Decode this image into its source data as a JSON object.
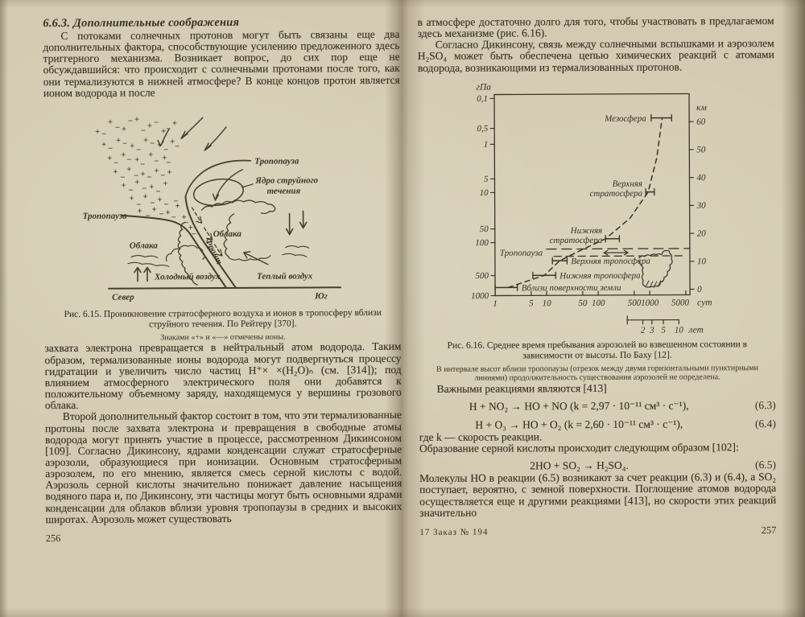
{
  "left_page": {
    "heading": "6.6.3. Дополнительные соображения",
    "para1": "С потоками солнечных  протонов могут быть связаны еще два дополнительных фактора, способствующие усилению предложенного здесь триггерного механизма. Возникает вопрос, до сих пор еще не обсуждавшийся: что происходит с солнечными протонами после того, как они термализуются в нижней атмосфере? В конце концов протон является ионом водорода и после",
    "figure": {
      "labels": {
        "tropopause_top": "Тропопауза",
        "tropopause_left": "Тропопауза",
        "jet_core_line1": "Ядро струйного",
        "jet_core_line2": "течения",
        "clouds_right": "Облака",
        "clouds_left": "Облака",
        "front": "Фронт",
        "cold_air": "Холодный воздух",
        "warm_air": "Теплый воздух",
        "north": "Север",
        "south": "Юг",
        "plus": "+",
        "minus": "−"
      }
    },
    "fig_caption": "Рис. 6.15. Проникновение стратосферного воздуха и ионов в тропосферу вблизи струйного течения. По Рейтеру [370].",
    "fig_note": "Знаками «+» и «—» отмечены ионы.",
    "para2": "захвата электрона превращается в нейтральный атом водорода. Таким образом, термализованные ионы  водорода могут подвергнуться процессу гидратации и увеличить число частиц H⁺× ×(H₂O)ₙ (см. [314]); под влиянием атмосферного электрического поля они добавятся к положительному объемному заряду, находящемуся у вершины грозового облака.",
    "para3": "Второй дополнительный фактор состоит в том, что эти термализованные протоны после захвата электрона и превращения в свободные атомы водорода могут принять участие в процессе, рассмотренном Дикинсоном [109]. Согласно Дикинсону, ядрами конденсации служат стратосферные  аэрозоли, образующиеся при ионизации. Основным  стратосферным  аэрозолем, по его мнению, является смесь серной кислоты с водой. Аэрозоль серной кислоты значительно понижает давление насыщения водяного пара и, по Дикинсону, эти частицы могут быть основными ядрами конденсации для облаков  вблизи уровня тропопаузы в средних и высоких широтах.  Аэрозоль может существовать",
    "page_number": "256"
  },
  "right_page": {
    "para1": "в атмосфере достаточно  долго  для того, чтобы участвовать в предлагаемом здесь механизме (рис. 6.16).",
    "para2": "Согласно Дикинсону, связь между солнечными вспышками и аэрозолем H₂SO₄ может быть обеспечена цепью химических реакций с атомами водорода, возникающими из термализованных протонов.",
    "fig_caption": "Рис. 6.16. Среднее время пребывания аэрозолей во взвешенном состоянии в зависимости от высоты. По Баху [12].",
    "fig_note": "В интервале высот вблизи тропопаузы (отрезок между двумя горизонтальными пунктирными линиями) продолжительность существования аэрозолей не определена.",
    "reactions_intro": "Важными реакциями являются [413]",
    "equations": [
      {
        "formula": "H + NO₂ → HO + NO (k = 2,97 · 10⁻¹¹ см³ · с⁻¹),",
        "number": "(6.3)"
      },
      {
        "formula": "H + O₃ → HO + O₂ (k = 2,60 · 10⁻¹¹ см³ · с⁻¹),",
        "number": "(6.4)"
      },
      {
        "formula": "2HO + SO₂ → H₂SO₄.",
        "number": "(6.5)"
      }
    ],
    "where_k": "где k — скорость реакции.",
    "sulfuric": "Образование серной  кислоты происходит следующим образом [102]:",
    "para3": "Молекулы HO в реакции (6.5)  возникают за счет реакции (6.3) и (6.4), а SO₂ поступает,  вероятно,  с земной  поверхности. Поглощение атомов водорода  осуществляется еще и другими реакциями  [413],  но  скорости  этих  реакций значительно",
    "footer_left": "17   Заказ № 194",
    "page_number": "257"
  },
  "chart_data": {
    "type": "scatter",
    "title": "Среднее время пребывания аэрозолей во взвешенном состоянии в зависимости от высоты. По Баху [12].",
    "x_axis": {
      "unit": "сут",
      "scale": "log",
      "ticks": [
        1,
        5,
        10,
        50,
        100,
        500,
        1000,
        5000
      ],
      "range": [
        1,
        6000
      ]
    },
    "x_axis_secondary": {
      "unit": "лет",
      "ticks": [
        {
          "label": "",
          "years": 1
        },
        {
          "label": "2",
          "years": 2
        },
        {
          "label": "3",
          "years": 3
        },
        {
          "label": "5",
          "years": 5
        },
        {
          "label": "10",
          "years": 10
        }
      ]
    },
    "y_axis_left": {
      "unit": "гПа",
      "ticks": [
        {
          "label": "0,1",
          "alt_km": 68.6
        },
        {
          "label": "0,5",
          "alt_km": 57.9
        },
        {
          "label": "1",
          "alt_km": 52.2
        },
        {
          "label": "5",
          "alt_km": 39.8
        },
        {
          "label": "10",
          "alt_km": 34.9
        },
        {
          "label": "50",
          "alt_km": 21.9
        },
        {
          "label": "100",
          "alt_km": 17.0
        },
        {
          "label": "500",
          "alt_km": 5.2
        },
        {
          "label": "1000",
          "alt_km": -2
        }
      ]
    },
    "y_axis_right": {
      "unit": "км",
      "ticks": [
        60,
        50,
        40,
        30,
        20,
        10,
        0
      ],
      "alt_range": [
        -2,
        70
      ]
    },
    "points": [
      {
        "label_lines": [
          "Мезосфера"
        ],
        "alt_km": 61.4,
        "days_min": 1100,
        "days_max": 2750,
        "label_side": "left"
      },
      {
        "label_lines": [
          "Верхняя",
          "стратосфера"
        ],
        "alt_km": 34.9,
        "days_min": 850,
        "days_max": 1250,
        "label_side": "left"
      },
      {
        "label_lines": [
          "Нижняя",
          "стратосфера"
        ],
        "alt_km": 18.2,
        "days_min": 140,
        "days_max": 260,
        "label_side": "left"
      },
      {
        "label_lines": [
          "Верхняя тропосфера"
        ],
        "alt_km": 10.4,
        "days_min": 13,
        "days_max": 25,
        "label_side": "right"
      },
      {
        "label_lines": [
          "Нижняя тропосфера"
        ],
        "alt_km": 5.2,
        "days_min": 5.4,
        "days_max": 15,
        "label_side": "right"
      },
      {
        "label_lines": [
          "Вблизи поверхности земли"
        ],
        "alt_km": 0.9,
        "days_min": 1,
        "days_max": 2.7,
        "label_side": "right"
      }
    ],
    "tropopause": {
      "label": "Тропопауза",
      "upper_alt_km": 14.6,
      "lower_alt_km": 12.0,
      "upper_days": [
        10,
        6000
      ],
      "lower_days": [
        14,
        5000
      ],
      "arrow_days": [
        130,
        380
      ],
      "arrow_alt_km": 13.2
    },
    "trend_line": [
      [
        1.8,
        0.9
      ],
      [
        9,
        5.2
      ],
      [
        18,
        10.4
      ],
      [
        45,
        14
      ],
      [
        140,
        18.2
      ],
      [
        420,
        25.5
      ],
      [
        950,
        34.9
      ],
      [
        1400,
        47
      ],
      [
        1800,
        61.4
      ]
    ],
    "legend_position": "none",
    "grid": false
  }
}
